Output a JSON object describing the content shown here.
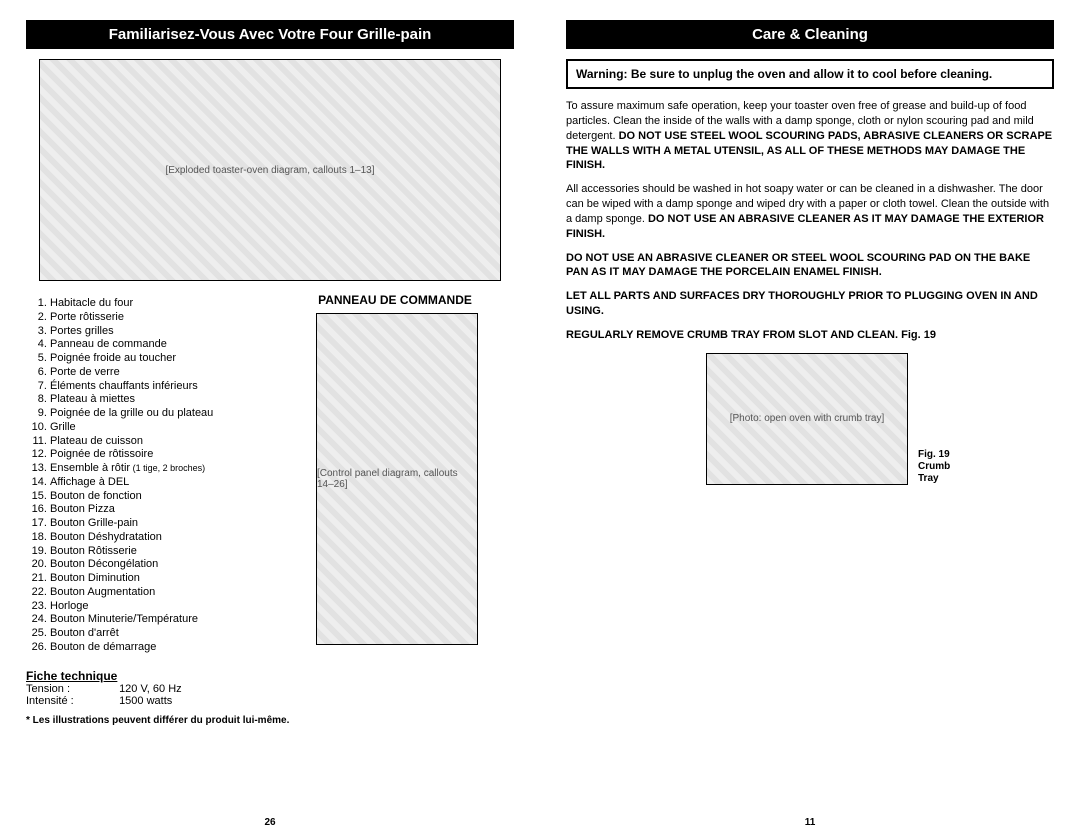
{
  "left": {
    "title": "Familiarisez-Vous Avec Votre Four Grille-pain",
    "oven_fig_label": "[Exploded toaster-oven diagram, callouts 1–13]",
    "parts": [
      "Habitacle du four",
      "Porte rôtisserie",
      "Portes grilles",
      "Panneau de commande",
      "Poignée froide au toucher",
      "Porte de verre",
      "Éléments chauffants inférieurs",
      "Plateau à miettes",
      "Poignée de la grille ou du plateau",
      "Grille",
      "Plateau de cuisson",
      "Poignée de rôtissoire",
      "Ensemble à rôtir",
      "Affichage à DEL",
      "Bouton de fonction",
      "Bouton Pizza",
      "Bouton Grille-pain",
      "Bouton Déshydratation",
      "Bouton Rôtisserie",
      "Bouton Décongélation",
      "Bouton Diminution",
      "Bouton Augmentation",
      "Horloge",
      "Bouton Minuterie/Température",
      "Bouton d'arrêt",
      "Bouton de démarrage"
    ],
    "item13_note": " (1 tige, 2 broches)",
    "panel_heading": "PANNEAU DE COMMANDE",
    "panel_fig_label": "[Control panel diagram, callouts 14–26]",
    "spec_heading": "Fiche technique",
    "spec_voltage_label": "Tension :",
    "spec_voltage_value": "120 V, 60 Hz",
    "spec_current_label": "Intensité :",
    "spec_current_value": "1500 watts",
    "footnote": "* Les illustrations peuvent différer du produit lui-même.",
    "page_number": "26"
  },
  "right": {
    "title": "Care & Cleaning",
    "warning": "Warning: Be sure to unplug the oven and allow it to cool before cleaning.",
    "p1_a": "To assure maximum safe operation, keep your toaster oven free of grease and build-up of food particles. Clean the inside of the walls with a damp sponge, cloth or nylon scouring pad and mild detergent. ",
    "p1_b": "DO NOT USE STEEL WOOL SCOURING PADS, ABRASIVE CLEANERS OR SCRAPE THE WALLS WITH A METAL UTENSIL, AS ALL OF THESE METHODS MAY DAMAGE THE FINISH.",
    "p2_a": "All accessories should be washed in hot soapy water or can be cleaned in a dishwasher.  The door can be wiped with a damp sponge and wiped dry with a paper or cloth towel.  Clean the outside with a damp sponge. ",
    "p2_b": "DO NOT USE AN ABRASIVE CLEANER AS IT MAY DAMAGE THE EXTERIOR FINISH.",
    "p3": "DO NOT USE AN ABRASIVE CLEANER OR STEEL WOOL SCOURING PAD ON THE BAKE PAN AS IT MAY DAMAGE THE PORCELAIN ENAMEL FINISH.",
    "p4": "LET ALL PARTS AND SURFACES DRY THOROUGHLY PRIOR TO PLUGGING OVEN IN AND USING.",
    "p5": "REGULARLY REMOVE CRUMB TRAY FROM SLOT AND CLEAN. Fig. 19",
    "fig19_img_label": "[Photo: open oven with crumb tray]",
    "fig19_caption1": "Fig. 19",
    "fig19_caption2": "Crumb",
    "fig19_caption3": "Tray",
    "page_number": "11"
  }
}
